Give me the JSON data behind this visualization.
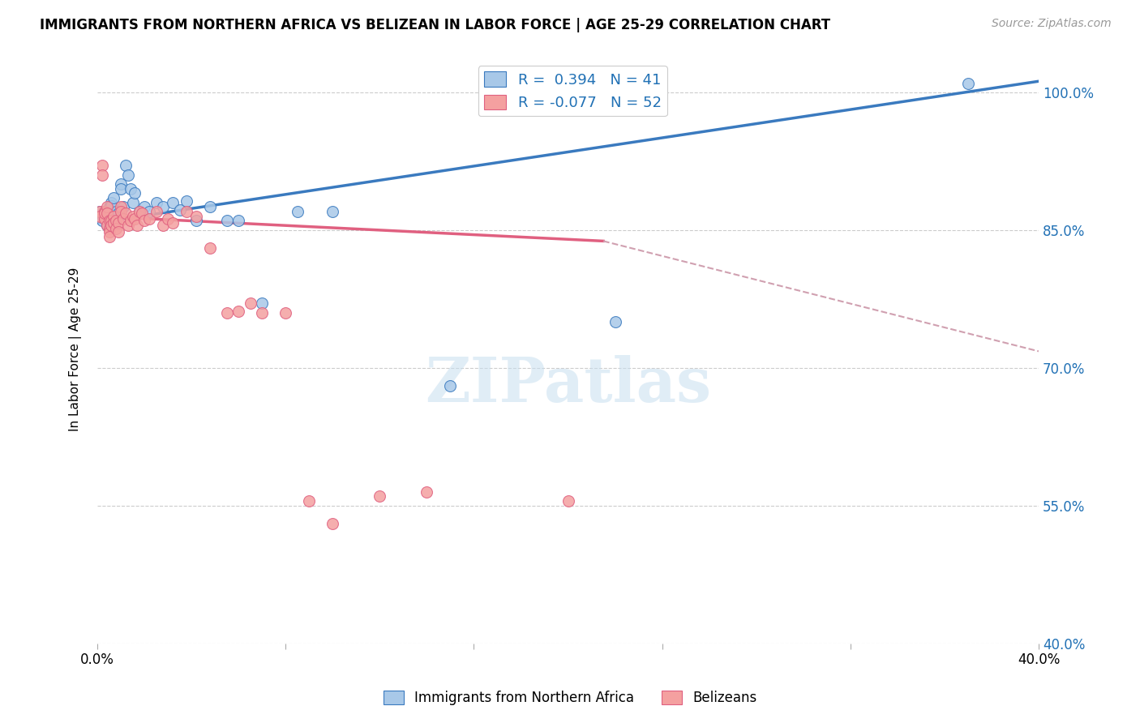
{
  "title": "IMMIGRANTS FROM NORTHERN AFRICA VS BELIZEAN IN LABOR FORCE | AGE 25-29 CORRELATION CHART",
  "source": "Source: ZipAtlas.com",
  "ylabel": "In Labor Force | Age 25-29",
  "xlim": [
    0.0,
    0.4
  ],
  "ylim": [
    0.4,
    1.04
  ],
  "yticks": [
    0.4,
    0.55,
    0.7,
    0.85,
    1.0
  ],
  "ytick_labels": [
    "40.0%",
    "55.0%",
    "70.0%",
    "85.0%",
    "100.0%"
  ],
  "xticks": [
    0.0,
    0.08,
    0.16,
    0.24,
    0.32,
    0.4
  ],
  "xtick_labels": [
    "0.0%",
    "",
    "",
    "",
    "",
    "40.0%"
  ],
  "blue_R": 0.394,
  "blue_N": 41,
  "pink_R": -0.077,
  "pink_N": 52,
  "blue_color": "#a8c8e8",
  "pink_color": "#f4a0a0",
  "blue_line_color": "#3a7abf",
  "pink_line_color": "#e06080",
  "pink_dash_color": "#d0a0b0",
  "legend_label_blue": "Immigrants from Northern Africa",
  "legend_label_pink": "Belizeans",
  "watermark": "ZIPatlas",
  "blue_scatter_x": [
    0.001,
    0.002,
    0.003,
    0.003,
    0.004,
    0.004,
    0.005,
    0.005,
    0.005,
    0.006,
    0.006,
    0.007,
    0.008,
    0.008,
    0.009,
    0.01,
    0.01,
    0.011,
    0.012,
    0.013,
    0.014,
    0.015,
    0.016,
    0.018,
    0.02,
    0.022,
    0.025,
    0.028,
    0.032,
    0.035,
    0.038,
    0.042,
    0.048,
    0.055,
    0.06,
    0.07,
    0.085,
    0.1,
    0.15,
    0.22,
    0.37
  ],
  "blue_scatter_y": [
    0.87,
    0.86,
    0.862,
    0.87,
    0.868,
    0.855,
    0.875,
    0.872,
    0.865,
    0.88,
    0.876,
    0.885,
    0.87,
    0.862,
    0.868,
    0.9,
    0.895,
    0.875,
    0.92,
    0.91,
    0.895,
    0.88,
    0.89,
    0.87,
    0.875,
    0.87,
    0.88,
    0.875,
    0.88,
    0.872,
    0.882,
    0.86,
    0.875,
    0.86,
    0.86,
    0.77,
    0.87,
    0.87,
    0.68,
    0.75,
    1.01
  ],
  "pink_scatter_x": [
    0.001,
    0.001,
    0.002,
    0.002,
    0.003,
    0.003,
    0.003,
    0.004,
    0.004,
    0.004,
    0.005,
    0.005,
    0.005,
    0.005,
    0.006,
    0.006,
    0.007,
    0.007,
    0.008,
    0.008,
    0.009,
    0.009,
    0.01,
    0.01,
    0.011,
    0.012,
    0.013,
    0.014,
    0.015,
    0.016,
    0.017,
    0.018,
    0.019,
    0.02,
    0.022,
    0.025,
    0.028,
    0.03,
    0.032,
    0.038,
    0.042,
    0.048,
    0.055,
    0.06,
    0.065,
    0.07,
    0.08,
    0.09,
    0.1,
    0.12,
    0.14,
    0.2
  ],
  "pink_scatter_y": [
    0.87,
    0.865,
    0.92,
    0.91,
    0.87,
    0.862,
    0.868,
    0.875,
    0.868,
    0.855,
    0.86,
    0.852,
    0.848,
    0.843,
    0.86,
    0.855,
    0.865,
    0.858,
    0.86,
    0.852,
    0.858,
    0.848,
    0.875,
    0.87,
    0.862,
    0.868,
    0.855,
    0.86,
    0.865,
    0.862,
    0.855,
    0.87,
    0.868,
    0.86,
    0.862,
    0.87,
    0.855,
    0.862,
    0.858,
    0.87,
    0.865,
    0.83,
    0.76,
    0.762,
    0.77,
    0.76,
    0.76,
    0.555,
    0.53,
    0.56,
    0.565,
    0.555
  ]
}
